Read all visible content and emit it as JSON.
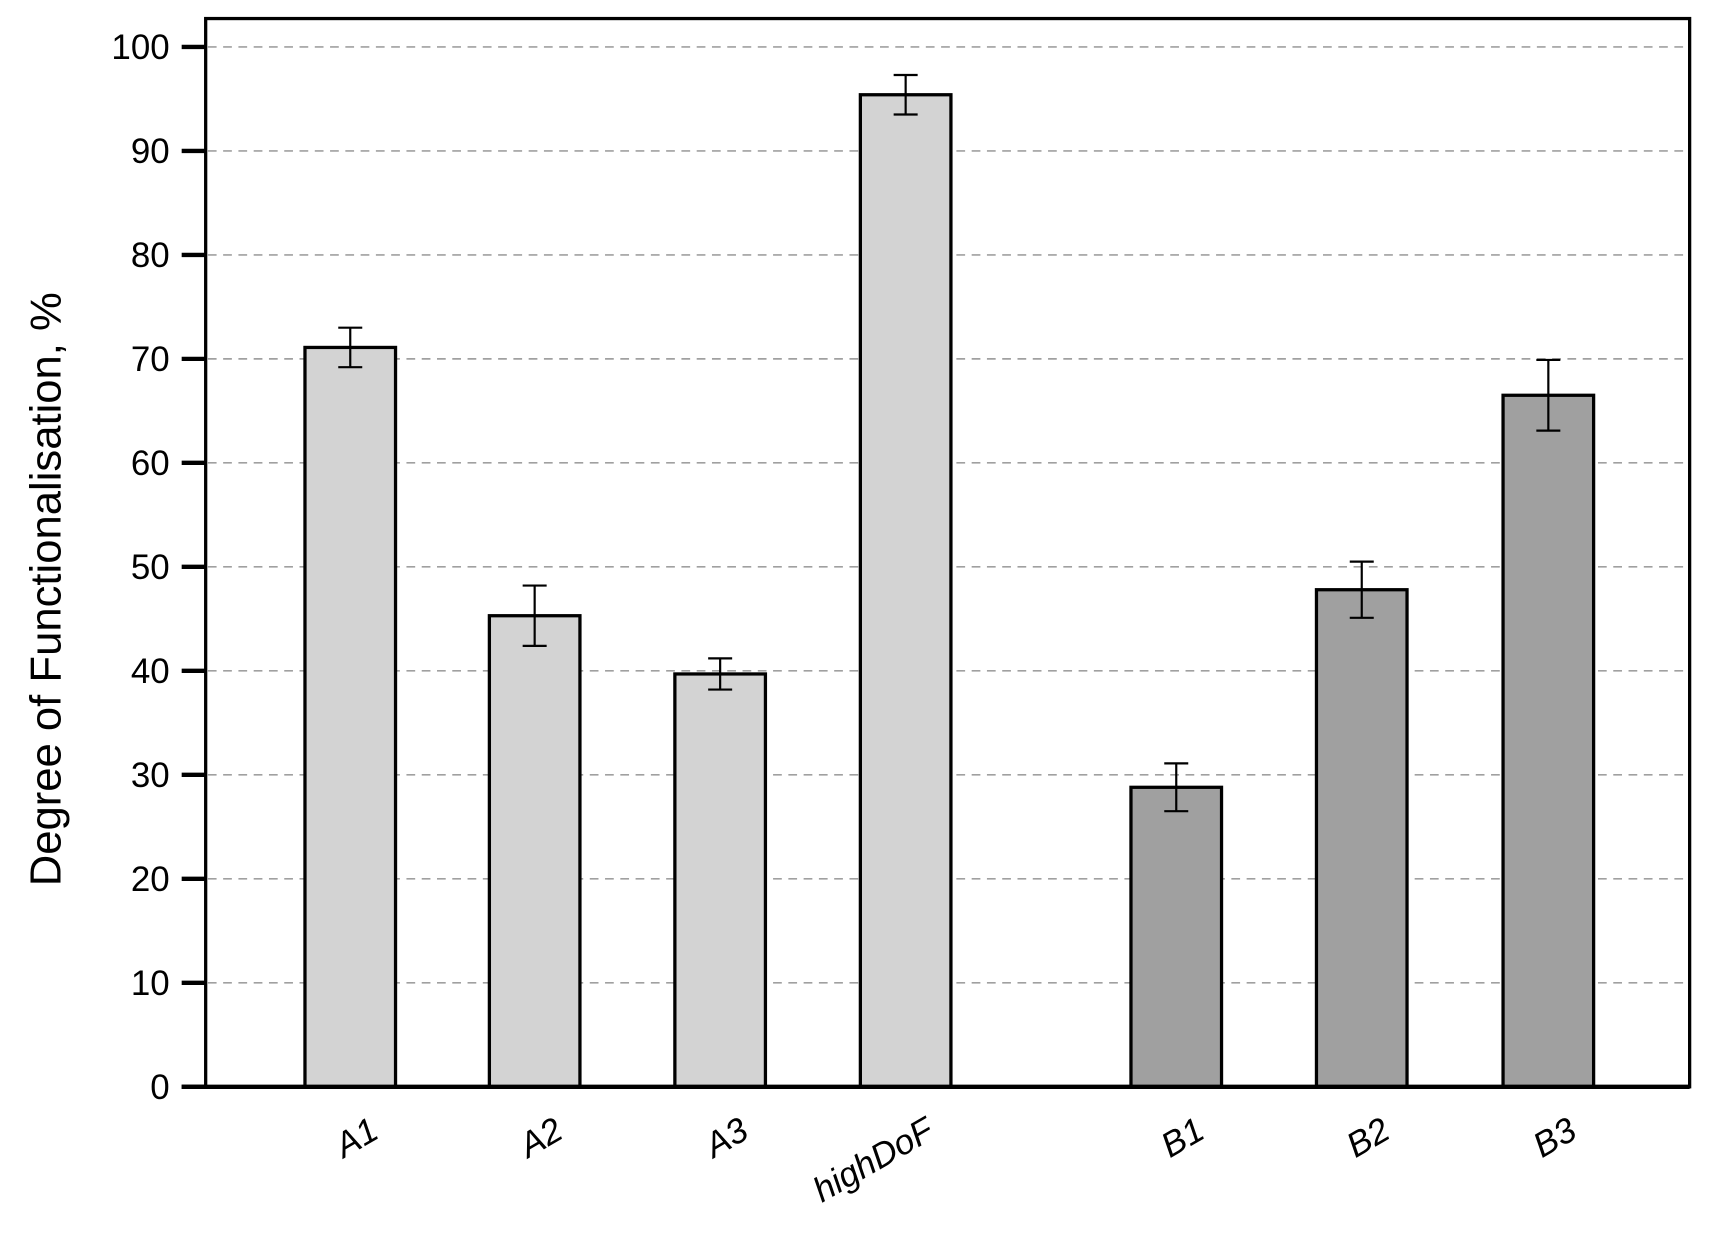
{
  "chart_data": {
    "type": "bar",
    "title": "",
    "xlabel": "",
    "ylabel": "Degree of Functionalisation, %",
    "ylim": [
      0,
      100
    ],
    "yticks": [
      0,
      10,
      20,
      30,
      40,
      50,
      60,
      70,
      80,
      90,
      100
    ],
    "grid": "horizontal dashed",
    "categories": [
      "A1",
      "A2",
      "A3",
      "highDoF",
      "B1",
      "B2",
      "B3"
    ],
    "values": [
      71.1,
      45.3,
      39.7,
      95.4,
      28.8,
      47.8,
      66.5
    ],
    "errors": [
      1.9,
      2.9,
      1.5,
      1.9,
      2.3,
      2.7,
      3.4
    ],
    "group_colors": {
      "A": "#d3d3d3",
      "B": "#a0a0a0"
    },
    "bar_colors": [
      "#d3d3d3",
      "#d3d3d3",
      "#d3d3d3",
      "#d3d3d3",
      "#a0a0a0",
      "#a0a0a0",
      "#a0a0a0"
    ]
  }
}
